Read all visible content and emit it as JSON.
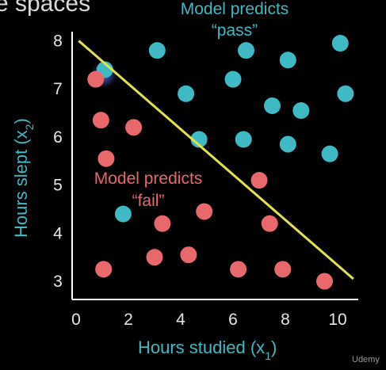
{
  "header": {
    "title_fragment": "e spaces"
  },
  "watermark": "Udemy",
  "colors": {
    "background": "#000000",
    "axis": "#ffffff",
    "pass_points": "#3fbac4",
    "fail_points": "#e8696b",
    "boundary": "#e2e34a",
    "tick_text": "#e6e6e6",
    "axis_title": "#3fbac4",
    "pass_label": "#3fbac4",
    "fail_label": "#e8696b",
    "cursor_glow": "#5a6cf0"
  },
  "chart_data": {
    "type": "scatter",
    "title": "",
    "xlabel": "Hours studied (x",
    "xlabel_sub": "1",
    "xlabel_close": ")",
    "ylabel": "Hours slept (x",
    "ylabel_sub": "2",
    "ylabel_close": ")",
    "xlim": [
      0,
      10.8
    ],
    "ylim": [
      2.7,
      8.2
    ],
    "x_ticks": [
      0,
      2,
      4,
      6,
      8,
      10
    ],
    "y_ticks": [
      3,
      4,
      5,
      6,
      7,
      8
    ],
    "grid": false,
    "legend": "none",
    "annotations": {
      "pass_line1": "Model predicts",
      "pass_line2": "“pass”",
      "fail_line1": "Model predicts",
      "fail_line2": "“fail”"
    },
    "decision_boundary": {
      "from": [
        0.1,
        8.0
      ],
      "to": [
        10.6,
        3.05
      ]
    },
    "series": [
      {
        "name": "pass",
        "points": [
          [
            1.1,
            7.4
          ],
          [
            3.1,
            7.8
          ],
          [
            4.2,
            6.9
          ],
          [
            4.7,
            5.95
          ],
          [
            6.0,
            7.2
          ],
          [
            6.5,
            7.8
          ],
          [
            6.4,
            5.95
          ],
          [
            7.5,
            6.65
          ],
          [
            8.1,
            7.6
          ],
          [
            8.6,
            6.55
          ],
          [
            8.1,
            5.85
          ],
          [
            9.7,
            5.65
          ],
          [
            10.1,
            7.95
          ],
          [
            10.3,
            6.9
          ],
          [
            1.8,
            4.4
          ]
        ]
      },
      {
        "name": "fail",
        "points": [
          [
            0.75,
            7.2
          ],
          [
            0.95,
            6.35
          ],
          [
            2.2,
            6.2
          ],
          [
            1.15,
            5.55
          ],
          [
            3.3,
            4.2
          ],
          [
            4.9,
            4.45
          ],
          [
            7.0,
            5.1
          ],
          [
            7.4,
            4.2
          ],
          [
            1.05,
            3.25
          ],
          [
            3.0,
            3.5
          ],
          [
            4.3,
            3.55
          ],
          [
            6.2,
            3.25
          ],
          [
            7.9,
            3.25
          ],
          [
            9.5,
            3.0
          ]
        ]
      }
    ]
  }
}
